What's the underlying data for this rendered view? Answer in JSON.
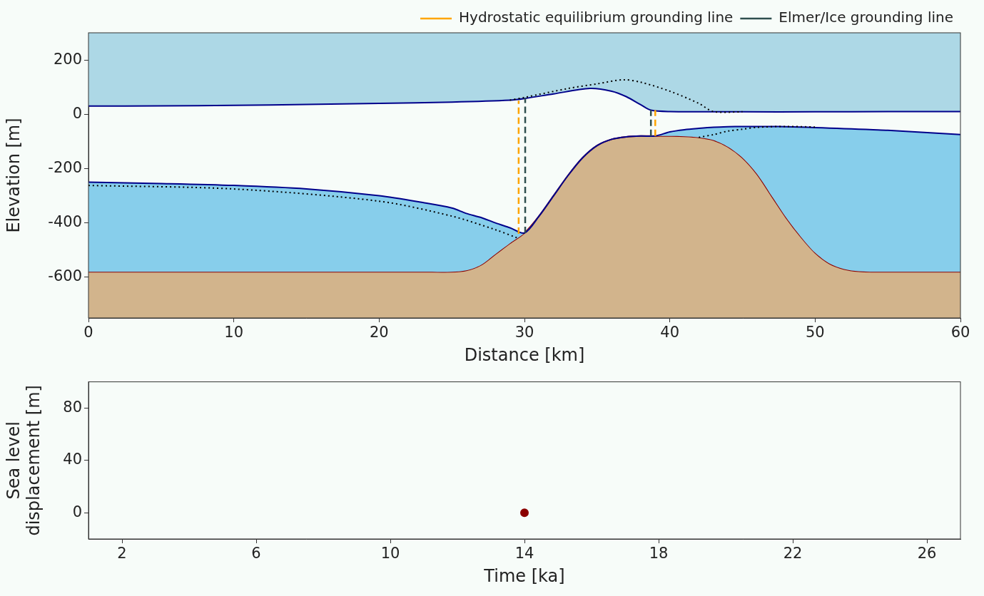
{
  "chart_data": [
    {
      "type": "line",
      "xlabel": "Distance [km]",
      "ylabel": "Elevation [m]",
      "xlim": [
        0,
        60
      ],
      "xticks": [
        0,
        10,
        20,
        30,
        40,
        50,
        60
      ],
      "ylim": [
        -750,
        300
      ],
      "yticks": [
        -600,
        -400,
        -200,
        0,
        200
      ],
      "grid": false,
      "legend": "top",
      "series": [
        {
          "color": "#00008b",
          "line_style": "solid",
          "x": [
            0,
            5,
            10,
            15,
            20,
            25,
            29,
            30,
            32,
            34.5,
            36,
            37,
            38,
            38.7,
            40,
            45,
            50,
            55,
            60
          ],
          "values": [
            30,
            31,
            33,
            36,
            40,
            45,
            52,
            58,
            75,
            95,
            85,
            65,
            35,
            15,
            10,
            9,
            9,
            10,
            10
          ]
        },
        {
          "color": "#8b0000",
          "line_style": "solid",
          "x": [
            0,
            5,
            10,
            15,
            20,
            23,
            25,
            26,
            27,
            28,
            29,
            30,
            31,
            32,
            33,
            34,
            35,
            36,
            37,
            38,
            39,
            40,
            41,
            42,
            43,
            44,
            45,
            46,
            47,
            48,
            49,
            50,
            51,
            52,
            53,
            54,
            55,
            60
          ],
          "values": [
            -580,
            -580,
            -580,
            -580,
            -580,
            -580,
            -580,
            -575,
            -555,
            -515,
            -475,
            -437,
            -375,
            -300,
            -225,
            -160,
            -115,
            -92,
            -83,
            -80,
            -80,
            -80,
            -81,
            -85,
            -95,
            -120,
            -160,
            -220,
            -300,
            -380,
            -450,
            -510,
            -550,
            -570,
            -578,
            -580,
            -580,
            -580
          ]
        },
        {
          "color": "#00008b",
          "line_style": "solid",
          "x": [
            0,
            5,
            10,
            15,
            20,
            23,
            25,
            26,
            27,
            28,
            29,
            30,
            31,
            32,
            33,
            34,
            35,
            36,
            37,
            38,
            39,
            40,
            41,
            42,
            43,
            44,
            45,
            46,
            47,
            48,
            49,
            50,
            51,
            52,
            53,
            54,
            55,
            60
          ],
          "values": [
            -250,
            -255,
            -262,
            -275,
            -300,
            -325,
            -345,
            -365,
            -380,
            -400,
            -418,
            -437,
            -375,
            -300,
            -225,
            -160,
            -115,
            -92,
            -83,
            -80,
            -80,
            -65,
            -57,
            -52,
            -48,
            -46,
            -45,
            -45,
            -45,
            -46,
            -47,
            -49,
            -51,
            -53,
            -55,
            -57,
            -59,
            -75
          ]
        },
        {
          "color": "#000000",
          "line_style": "dotted",
          "x": [
            29,
            30,
            33,
            35,
            36.8,
            38,
            40,
            42,
            43,
            45
          ],
          "values": [
            52,
            62,
            95,
            112,
            127,
            118,
            85,
            40,
            10,
            9
          ]
        },
        {
          "color": "#000000",
          "line_style": "dotted",
          "x": [
            0,
            10,
            20,
            25,
            28,
            29.5,
            36,
            42,
            43,
            44,
            45,
            46,
            48,
            50
          ],
          "values": [
            -262,
            -275,
            -320,
            -375,
            -425,
            -455,
            null,
            -85,
            -75,
            -62,
            -55,
            -48,
            -45,
            -47
          ]
        },
        {
          "name": "Elmer/Ice grounding line",
          "color": "#2f4f4f",
          "line_style": "dashed",
          "x": [
            30.05,
            30.05,
            34,
            38.7,
            38.7
          ],
          "values": [
            -437,
            60,
            null,
            -80,
            15
          ]
        },
        {
          "name": "Hydrostatic equilibrium grounding line",
          "color": "#ffa500",
          "line_style": "dashed",
          "x": [
            29.6,
            29.6,
            34,
            39.0,
            39.0
          ],
          "values": [
            -440,
            50,
            null,
            -80,
            15
          ]
        }
      ]
    },
    {
      "type": "scatter",
      "xlabel": "Time [ka]",
      "ylabel": "Sea level displacement [m]",
      "xlim": [
        1,
        27
      ],
      "xticks": [
        2,
        6,
        10,
        14,
        18,
        22,
        26
      ],
      "ylim": [
        -20,
        100
      ],
      "yticks": [
        0,
        40,
        80
      ],
      "grid": false,
      "series": [
        {
          "color": "#8b0000",
          "marker": "circle",
          "x": [
            14
          ],
          "values": [
            0
          ]
        }
      ]
    }
  ]
}
